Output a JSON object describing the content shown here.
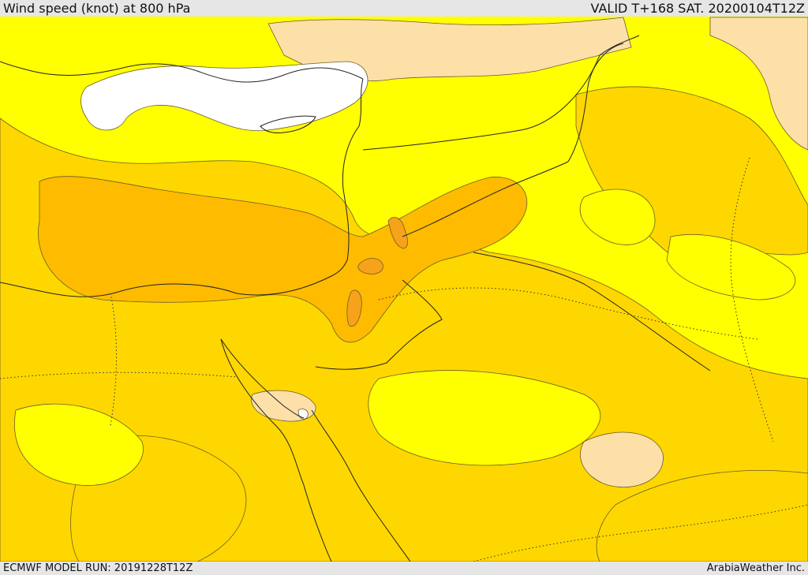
{
  "header": {
    "title": "Wind speed (knot) at 800 hPa",
    "valid": "VALID T+168 SAT. 20200104T12Z"
  },
  "footer": {
    "model_run": "ECMWF MODEL RUN: 20191228T12Z",
    "credit": "ArabiaWeather Inc."
  },
  "map": {
    "variable": "wind speed",
    "level": "800 hPa",
    "unit": "knot",
    "colors": {
      "calm": "#ffffff",
      "light": "#fde0a8",
      "base": "#ffff00",
      "moderate": "#ffd700",
      "strong": "#ffbb00",
      "stronger": "#f7a21b"
    }
  }
}
